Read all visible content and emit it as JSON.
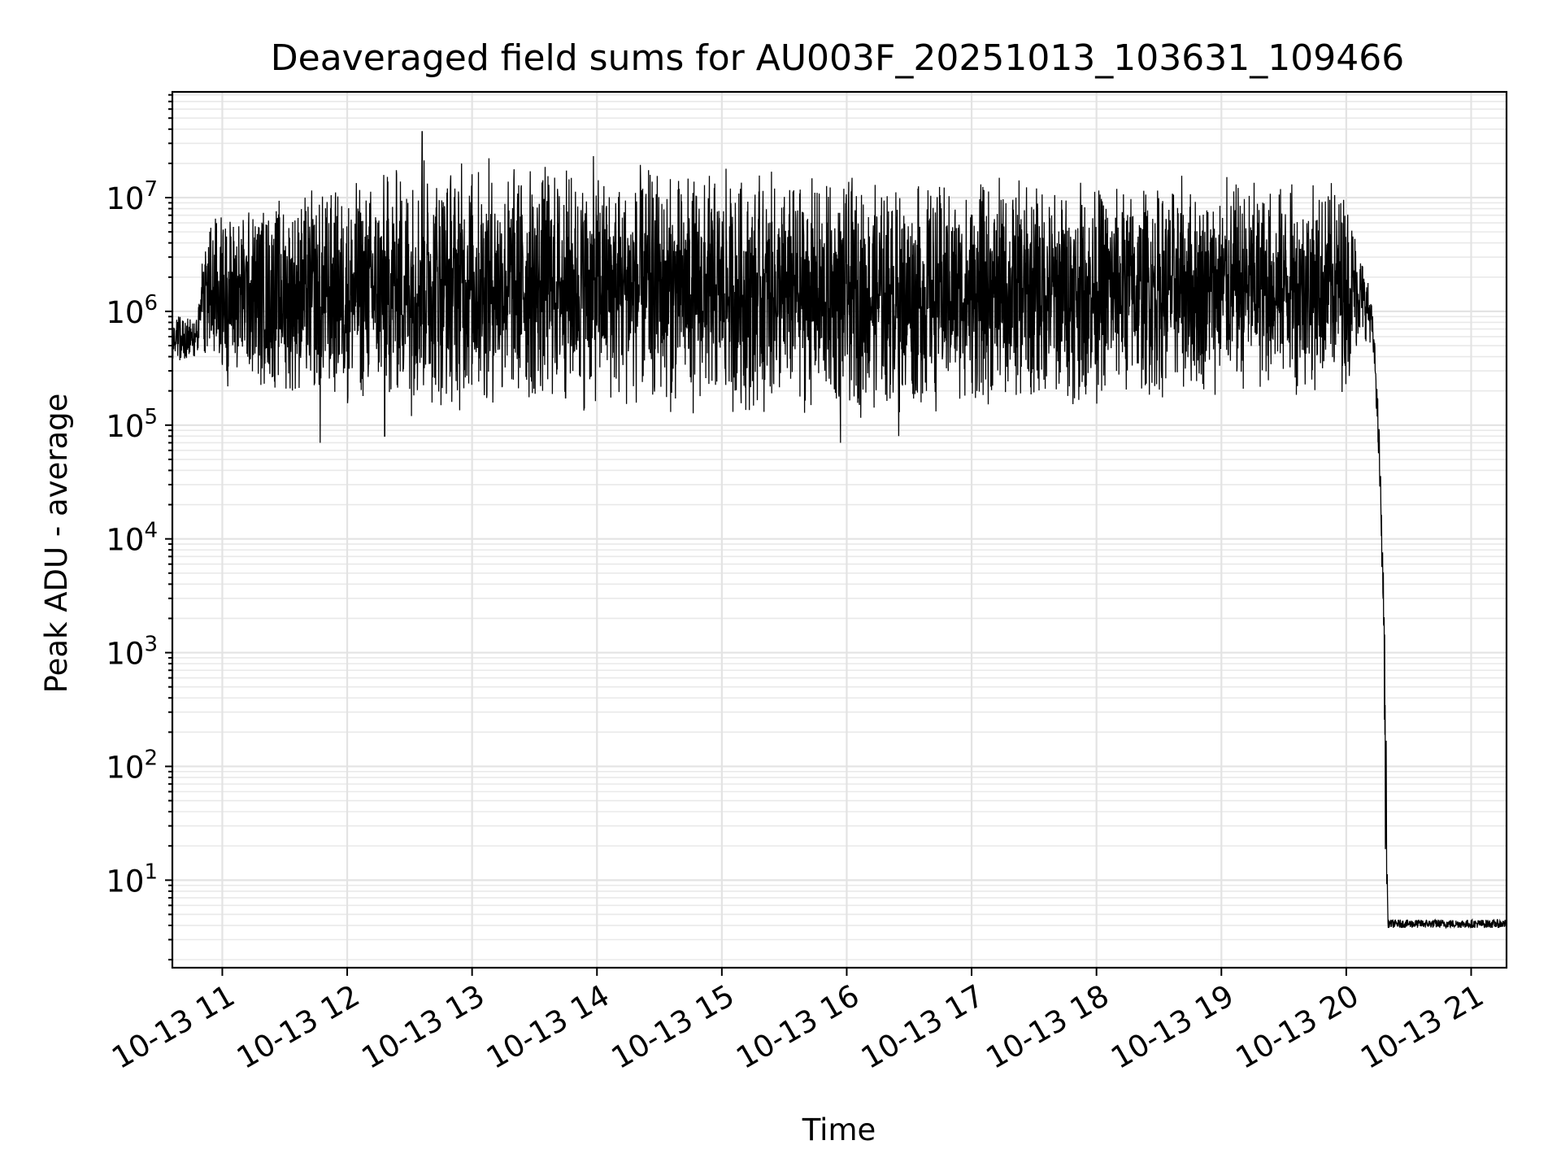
{
  "chart_data": {
    "type": "line",
    "title": "Deaveraged field sums for AU003F_20251013_103631_109466",
    "xlabel": "Time",
    "ylabel": "Peak ADU - average",
    "x_scale": "time",
    "y_scale": "log",
    "xlim": [
      "2025-10-13 10:36",
      "2025-10-13 21:17"
    ],
    "ylim": [
      1.7,
      85000000
    ],
    "grid": true,
    "grid_minor": true,
    "line_color": "#000000",
    "x_ticks": [
      {
        "time": "2025-10-13 11:00",
        "label": "10-13 11"
      },
      {
        "time": "2025-10-13 12:00",
        "label": "10-13 12"
      },
      {
        "time": "2025-10-13 13:00",
        "label": "10-13 13"
      },
      {
        "time": "2025-10-13 14:00",
        "label": "10-13 14"
      },
      {
        "time": "2025-10-13 15:00",
        "label": "10-13 15"
      },
      {
        "time": "2025-10-13 16:00",
        "label": "10-13 16"
      },
      {
        "time": "2025-10-13 17:00",
        "label": "10-13 17"
      },
      {
        "time": "2025-10-13 18:00",
        "label": "10-13 18"
      },
      {
        "time": "2025-10-13 19:00",
        "label": "10-13 19"
      },
      {
        "time": "2025-10-13 20:00",
        "label": "10-13 20"
      },
      {
        "time": "2025-10-13 21:00",
        "label": "10-13 21"
      }
    ],
    "y_ticks": [
      {
        "value": 10,
        "base": "10",
        "exp": "1"
      },
      {
        "value": 100,
        "base": "10",
        "exp": "2"
      },
      {
        "value": 1000,
        "base": "10",
        "exp": "3"
      },
      {
        "value": 10000,
        "base": "10",
        "exp": "4"
      },
      {
        "value": 100000,
        "base": "10",
        "exp": "5"
      },
      {
        "value": 1000000,
        "base": "10",
        "exp": "6"
      },
      {
        "value": 10000000,
        "base": "10",
        "exp": "7"
      }
    ],
    "series": [
      {
        "profile": [
          {
            "time": "2025-10-13 10:36",
            "low": 380000,
            "high": 900000
          },
          {
            "time": "2025-10-13 10:48",
            "low": 350000,
            "high": 900000
          },
          {
            "time": "2025-10-13 10:50",
            "low": 900000,
            "high": 2500000
          },
          {
            "time": "2025-10-13 10:52",
            "low": 200000,
            "high": 10000000
          },
          {
            "time": "2025-10-13 12:00",
            "low": 100000,
            "high": 20000000
          },
          {
            "time": "2025-10-13 12:36",
            "low": 90000,
            "high": 38000000
          },
          {
            "time": "2025-10-13 16:00",
            "low": 90000,
            "high": 20000000
          },
          {
            "time": "2025-10-13 20:00",
            "low": 150000,
            "high": 20000000
          },
          {
            "time": "2025-10-13 20:04",
            "low": 300000,
            "high": 9000000
          },
          {
            "time": "2025-10-13 20:09",
            "low": 500000,
            "high": 3000000
          },
          {
            "time": "2025-10-13 20:12",
            "low": 500000,
            "high": 1500000
          },
          {
            "time": "2025-10-13 20:14",
            "low": 200000,
            "high": 500000
          },
          {
            "time": "2025-10-13 20:16",
            "low": 20000,
            "high": 100000
          },
          {
            "time": "2025-10-13 20:17",
            "low": 6000,
            "high": 20000
          },
          {
            "time": "2025-10-13 20:18",
            "low": 1000,
            "high": 5000
          },
          {
            "time": "2025-10-13 20:19",
            "low": 4,
            "high": 1000
          },
          {
            "time": "2025-10-13 20:20",
            "low": 3.8,
            "high": 4.5
          },
          {
            "time": "2025-10-13 21:17",
            "low": 3.8,
            "high": 4.5
          }
        ],
        "spikes": [
          {
            "time": "2025-10-13 11:47",
            "value": 70000
          },
          {
            "time": "2025-10-13 12:18",
            "value": 80000
          },
          {
            "time": "2025-10-13 12:36",
            "value": 38000000
          },
          {
            "time": "2025-10-13 15:57",
            "value": 70000
          },
          {
            "time": "2025-10-13 16:25",
            "value": 80000
          }
        ]
      }
    ]
  }
}
